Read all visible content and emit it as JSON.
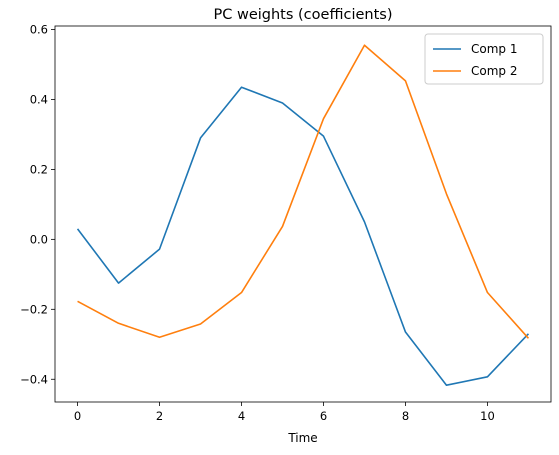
{
  "chart_data": {
    "type": "line",
    "title": "PC weights (coefficients)",
    "xlabel": "Time",
    "ylabel": "",
    "xlim": [
      -0.55,
      11.55
    ],
    "ylim": [
      -0.465,
      0.61
    ],
    "xticks": [
      0,
      2,
      4,
      6,
      8,
      10
    ],
    "xtick_labels": [
      "0",
      "2",
      "4",
      "6",
      "8",
      "10"
    ],
    "yticks": [
      -0.4,
      -0.2,
      0.0,
      0.2,
      0.4,
      0.6
    ],
    "ytick_labels": [
      "−0.4",
      "−0.2",
      "0.0",
      "0.2",
      "0.4",
      "0.6"
    ],
    "x": [
      0,
      1,
      2,
      3,
      4,
      5,
      6,
      7,
      8,
      9,
      10,
      11
    ],
    "series": [
      {
        "name": "Comp 1",
        "color": "#1f77b4",
        "values": [
          0.03,
          -0.125,
          -0.028,
          0.29,
          0.435,
          0.39,
          0.295,
          0.05,
          -0.265,
          -0.417,
          -0.393,
          -0.27
        ]
      },
      {
        "name": "Comp 2",
        "color": "#ff7f0e",
        "values": [
          -0.177,
          -0.24,
          -0.28,
          -0.242,
          -0.152,
          0.037,
          0.345,
          0.555,
          0.453,
          0.13,
          -0.152,
          -0.283
        ]
      }
    ],
    "grid": false,
    "legend_position": "top-right"
  }
}
